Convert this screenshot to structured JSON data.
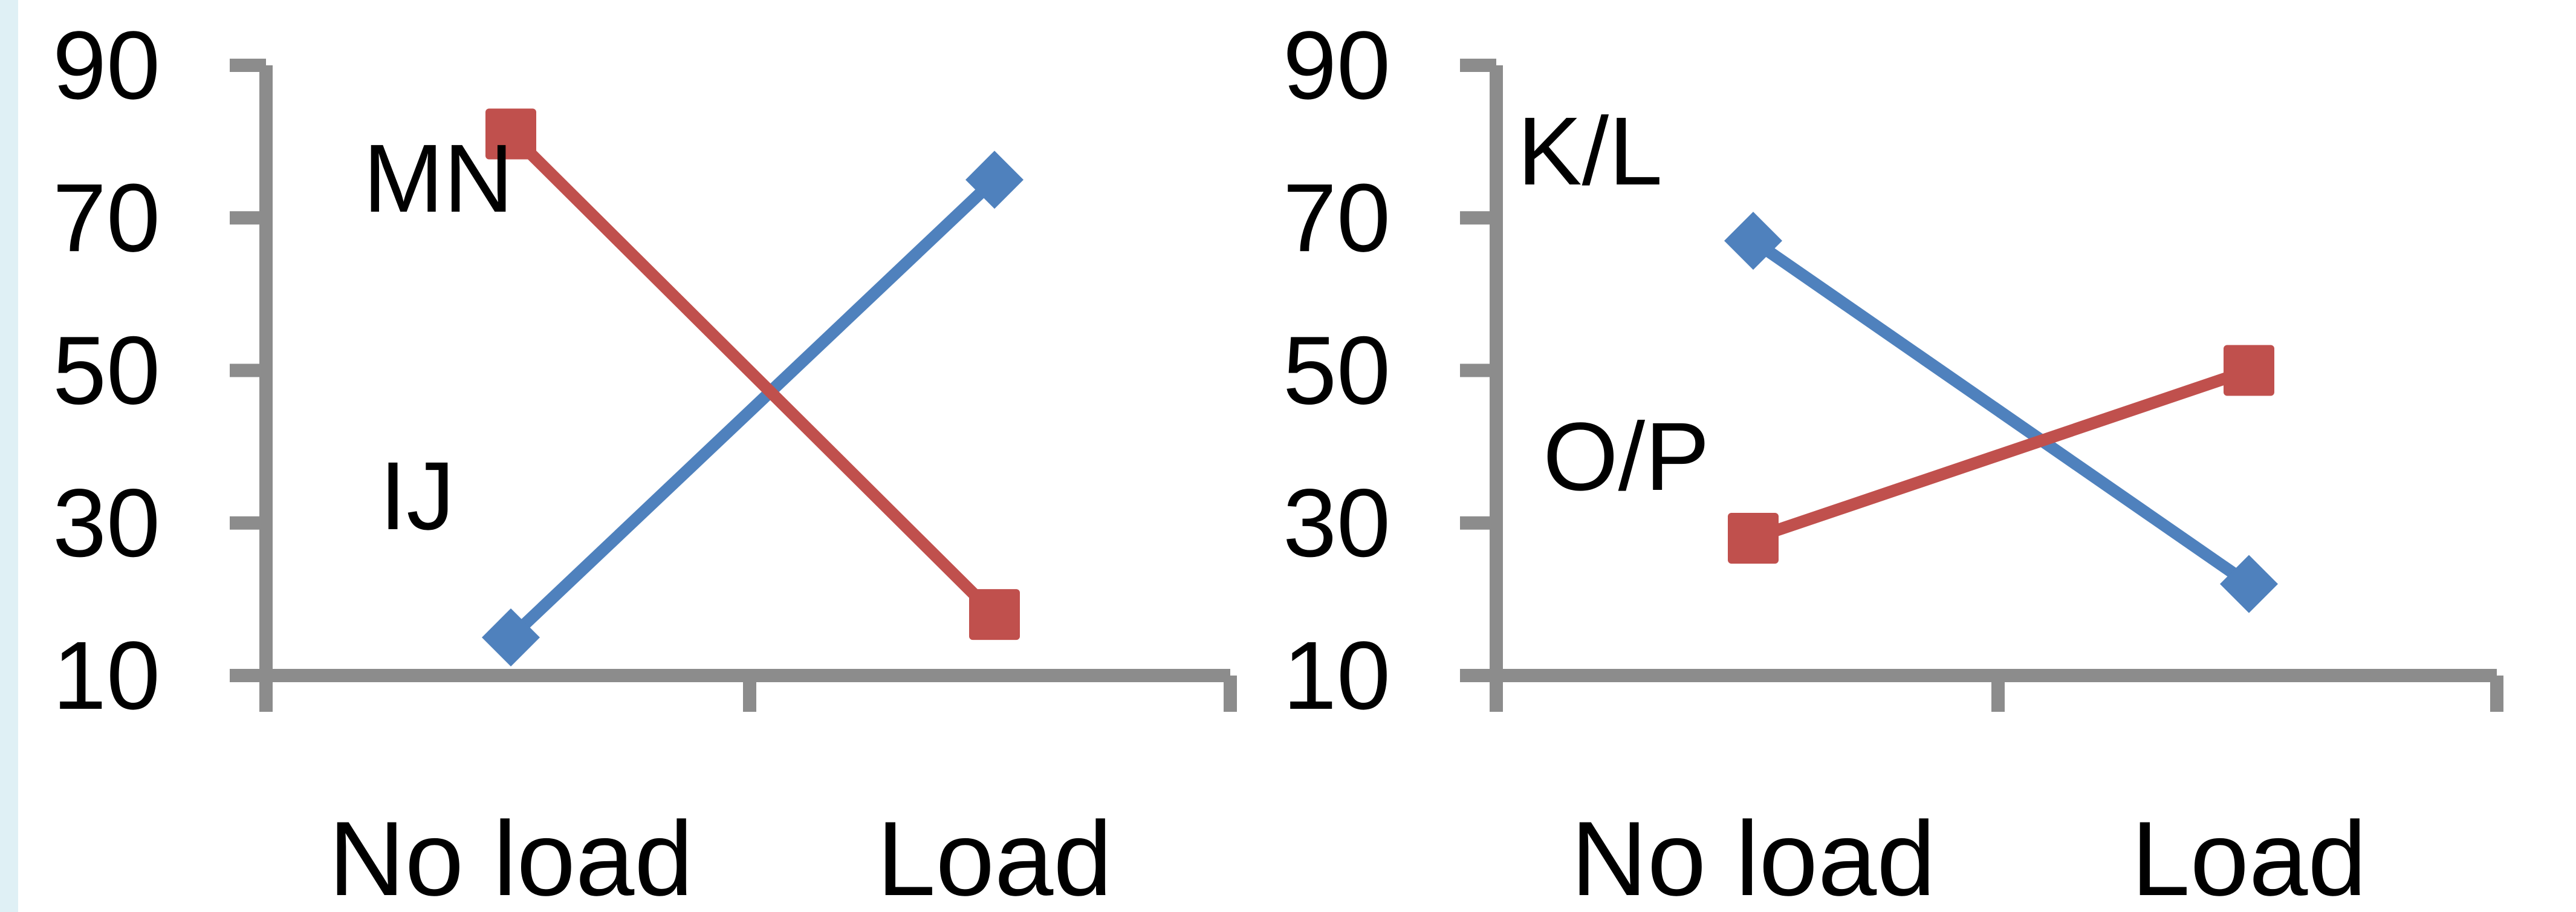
{
  "colors": {
    "axis": "#8c8c8c",
    "blue": "#4f81bd",
    "red": "#c0504d",
    "strip": "#dff0f5"
  },
  "chart_data": [
    {
      "type": "line",
      "title": "",
      "xlabel": "",
      "ylabel": "",
      "categories": [
        "No load",
        "Load"
      ],
      "yticks": [
        10,
        30,
        50,
        70,
        90
      ],
      "ylim": [
        10,
        90
      ],
      "grid": false,
      "series": [
        {
          "name": "IJ",
          "color": "#4f81bd",
          "marker": "diamond",
          "values": [
            15,
            75
          ]
        },
        {
          "name": "MN",
          "color": "#c0504d",
          "marker": "square",
          "values": [
            81,
            18
          ]
        }
      ]
    },
    {
      "type": "line",
      "title": "",
      "xlabel": "",
      "ylabel": "",
      "categories": [
        "No load",
        "Load"
      ],
      "yticks": [
        10,
        30,
        50,
        70,
        90
      ],
      "ylim": [
        10,
        90
      ],
      "grid": false,
      "series": [
        {
          "name": "K/L",
          "color": "#4f81bd",
          "marker": "diamond",
          "values": [
            67,
            22
          ]
        },
        {
          "name": "O/P",
          "color": "#c0504d",
          "marker": "square",
          "values": [
            28,
            50
          ]
        }
      ]
    }
  ]
}
